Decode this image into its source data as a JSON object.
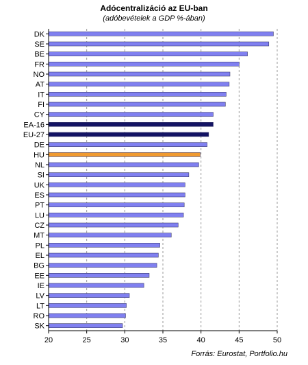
{
  "chart_data": {
    "type": "bar",
    "orientation": "horizontal",
    "title": "Adócentralizáció az EU-ban",
    "subtitle": "(adóbevételek a GDP %-ában)",
    "source": "Forrás: Eurostat, Portfolio.hu",
    "xlim": [
      20,
      50
    ],
    "xticks": [
      20,
      25,
      30,
      35,
      40,
      45,
      50
    ],
    "grid": "vertical dashed",
    "colors": {
      "default": "#8080f0",
      "aggregate": "#141464",
      "highlight": "#f09a30"
    },
    "categories": [
      "DK",
      "SE",
      "BE",
      "FR",
      "NO",
      "AT",
      "IT",
      "FI",
      "CY",
      "EA-16",
      "EU-27",
      "DE",
      "HU",
      "NL",
      "SI",
      "UK",
      "ES",
      "PT",
      "LU",
      "CZ",
      "MT",
      "PL",
      "EL",
      "BG",
      "EE",
      "IE",
      "LV",
      "LT",
      "RO",
      "SK"
    ],
    "values": [
      49.5,
      48.9,
      46.1,
      45.0,
      43.8,
      43.7,
      43.3,
      43.2,
      41.6,
      41.6,
      41.0,
      40.8,
      39.9,
      39.7,
      38.4,
      37.9,
      37.9,
      37.8,
      37.7,
      37.0,
      36.1,
      34.6,
      34.4,
      34.2,
      33.2,
      32.5,
      30.6,
      30.2,
      30.1,
      29.7
    ],
    "bar_kind": [
      "default",
      "default",
      "default",
      "default",
      "default",
      "default",
      "default",
      "default",
      "default",
      "aggregate",
      "aggregate",
      "default",
      "highlight",
      "default",
      "default",
      "default",
      "default",
      "default",
      "default",
      "default",
      "default",
      "default",
      "default",
      "default",
      "default",
      "default",
      "default",
      "default",
      "default",
      "default"
    ]
  }
}
